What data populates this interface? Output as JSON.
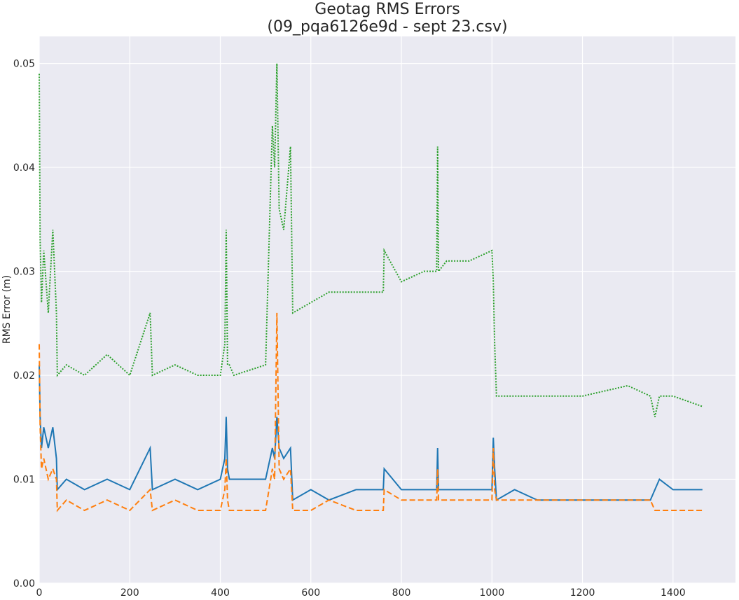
{
  "chart_data": {
    "type": "line",
    "title": [
      "Geotag RMS Errors",
      "(09_pqa6126e9d - sept 23.csv)"
    ],
    "y_label": "RMS Error (m)",
    "x": [
      0,
      2,
      5,
      10,
      20,
      30,
      38,
      40,
      60,
      100,
      150,
      200,
      245,
      250,
      300,
      350,
      400,
      410,
      413,
      416,
      420,
      430,
      500,
      515,
      520,
      525,
      530,
      540,
      555,
      560,
      600,
      640,
      700,
      760,
      762,
      800,
      850,
      878,
      880,
      882,
      900,
      950,
      1000,
      1003,
      1006,
      1010,
      1050,
      1100,
      1200,
      1300,
      1350,
      1360,
      1370,
      1400,
      1465
    ],
    "series": [
      {
        "color": "#1f77b4",
        "dash": "solid",
        "values": [
          0.021,
          0.016,
          0.013,
          0.015,
          0.013,
          0.015,
          0.012,
          0.009,
          0.01,
          0.009,
          0.01,
          0.009,
          0.013,
          0.009,
          0.01,
          0.009,
          0.01,
          0.012,
          0.016,
          0.011,
          0.01,
          0.01,
          0.01,
          0.013,
          0.012,
          0.016,
          0.013,
          0.012,
          0.013,
          0.008,
          0.009,
          0.008,
          0.009,
          0.009,
          0.011,
          0.009,
          0.009,
          0.009,
          0.013,
          0.009,
          0.009,
          0.009,
          0.009,
          0.014,
          0.011,
          0.008,
          0.009,
          0.008,
          0.008,
          0.008,
          0.008,
          0.009,
          0.01,
          0.009,
          0.009
        ]
      },
      {
        "color": "#ff7f0e",
        "dash": "dashed",
        "values": [
          0.023,
          0.015,
          0.011,
          0.012,
          0.01,
          0.011,
          0.01,
          0.007,
          0.008,
          0.007,
          0.008,
          0.007,
          0.009,
          0.007,
          0.008,
          0.007,
          0.007,
          0.009,
          0.012,
          0.008,
          0.007,
          0.007,
          0.007,
          0.011,
          0.01,
          0.026,
          0.011,
          0.01,
          0.011,
          0.007,
          0.007,
          0.008,
          0.007,
          0.007,
          0.009,
          0.008,
          0.008,
          0.008,
          0.011,
          0.008,
          0.008,
          0.008,
          0.008,
          0.013,
          0.009,
          0.008,
          0.008,
          0.008,
          0.008,
          0.008,
          0.008,
          0.007,
          0.007,
          0.007,
          0.007
        ]
      },
      {
        "color": "#2ca02c",
        "dash": "dotted",
        "values": [
          0.049,
          0.033,
          0.027,
          0.032,
          0.026,
          0.034,
          0.026,
          0.02,
          0.021,
          0.02,
          0.022,
          0.02,
          0.026,
          0.02,
          0.021,
          0.02,
          0.02,
          0.023,
          0.034,
          0.021,
          0.021,
          0.02,
          0.021,
          0.044,
          0.04,
          0.05,
          0.036,
          0.034,
          0.042,
          0.026,
          0.027,
          0.028,
          0.028,
          0.028,
          0.032,
          0.029,
          0.03,
          0.03,
          0.042,
          0.03,
          0.031,
          0.031,
          0.032,
          0.029,
          0.023,
          0.018,
          0.018,
          0.018,
          0.018,
          0.019,
          0.018,
          0.016,
          0.018,
          0.018,
          0.017
        ]
      }
    ],
    "xlim": [
      0,
      1538
    ],
    "ylim": [
      0,
      0.0526
    ],
    "xticks": [
      0,
      200,
      400,
      600,
      800,
      1000,
      1200,
      1400
    ],
    "yticks": [
      {
        "value": 0,
        "label": "0.00"
      },
      {
        "value": 0.01,
        "label": "0.01"
      },
      {
        "value": 0.02,
        "label": "0.02"
      },
      {
        "value": 0.03,
        "label": "0.03"
      },
      {
        "value": 0.04,
        "label": "0.04"
      },
      {
        "value": 0.05,
        "label": "0.05"
      }
    ],
    "grid": true,
    "background": "#eaeaf2"
  }
}
